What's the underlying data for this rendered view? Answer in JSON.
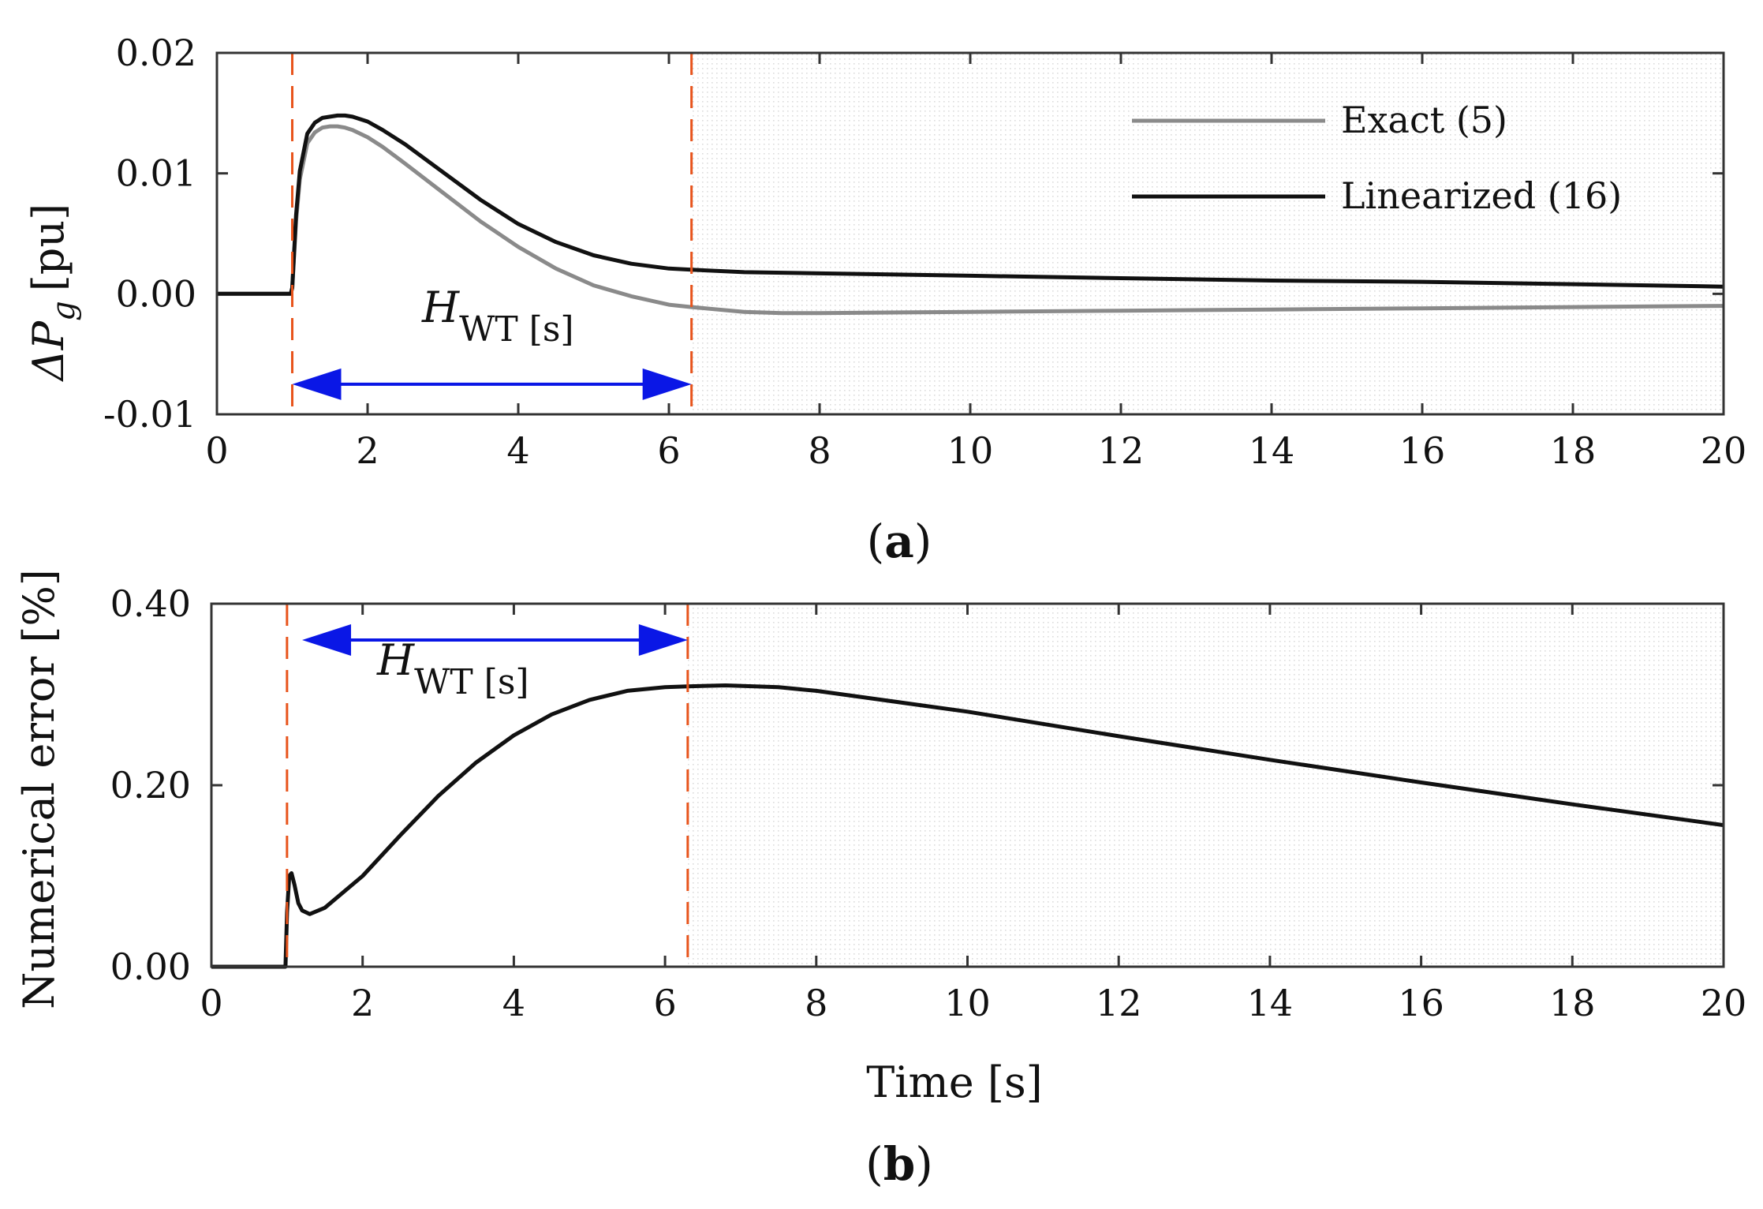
{
  "chart_data": [
    {
      "type": "line",
      "panel": "a",
      "caption_open": "(",
      "caption_letter": "a",
      "caption_close": ")",
      "ylabel_symbol": "ΔP",
      "ylabel_subscript": "g",
      "ylabel_unit": "[pu]",
      "xlabel": "",
      "xlim": [
        0,
        20
      ],
      "ylim": [
        -0.01,
        0.02
      ],
      "x_ticks": [
        "0",
        "2",
        "4",
        "6",
        "8",
        "10",
        "12",
        "14",
        "16",
        "18",
        "20"
      ],
      "y_ticks": [
        "-0.01",
        "0.00",
        "0.01",
        "0.02"
      ],
      "legend_position": "top-right",
      "vlines": [
        1.0,
        6.3
      ],
      "shaded_from": 6.3,
      "annotation": {
        "symbol": "H",
        "subscript": "WT [s]",
        "arrow_from": 1.0,
        "arrow_to": 6.3,
        "arrow_y": -0.0075
      },
      "series": [
        {
          "name": "Exact (5)",
          "color": "#8a8a8a",
          "x": [
            0,
            0.98,
            1.0,
            1.05,
            1.1,
            1.2,
            1.3,
            1.4,
            1.5,
            1.6,
            1.7,
            1.8,
            2.0,
            2.2,
            2.5,
            3.0,
            3.5,
            4.0,
            4.5,
            5.0,
            5.5,
            6.0,
            6.3,
            7.0,
            7.5,
            8,
            10,
            12,
            14,
            16,
            18,
            20
          ],
          "values": [
            0,
            0,
            0.0005,
            0.006,
            0.0095,
            0.0125,
            0.0134,
            0.0138,
            0.0139,
            0.0139,
            0.0138,
            0.0136,
            0.013,
            0.0122,
            0.0108,
            0.0084,
            0.006,
            0.0039,
            0.0021,
            0.0007,
            -0.0002,
            -0.0009,
            -0.0011,
            -0.0015,
            -0.0016,
            -0.0016,
            -0.0015,
            -0.0014,
            -0.0013,
            -0.0012,
            -0.0011,
            -0.001
          ]
        },
        {
          "name": "Linearized (16)",
          "color": "#111111",
          "x": [
            0,
            0.98,
            1.0,
            1.05,
            1.1,
            1.2,
            1.3,
            1.4,
            1.5,
            1.6,
            1.7,
            1.8,
            2.0,
            2.2,
            2.5,
            3.0,
            3.5,
            4.0,
            4.5,
            5.0,
            5.5,
            6.0,
            6.3,
            7,
            8,
            10,
            12,
            14,
            16,
            18,
            20
          ],
          "values": [
            0,
            0,
            0.0005,
            0.0065,
            0.0102,
            0.0133,
            0.0142,
            0.0146,
            0.0147,
            0.0148,
            0.0148,
            0.0147,
            0.0143,
            0.0136,
            0.0124,
            0.0101,
            0.0078,
            0.0058,
            0.0043,
            0.0032,
            0.0025,
            0.0021,
            0.002,
            0.0018,
            0.0017,
            0.0015,
            0.0013,
            0.0011,
            0.001,
            0.0008,
            0.0006
          ]
        }
      ]
    },
    {
      "type": "line",
      "panel": "b",
      "caption_open": "(",
      "caption_letter": "b",
      "caption_close": ")",
      "ylabel": "Numerical error [%]",
      "xlabel": "Time [s]",
      "xlim": [
        0,
        20
      ],
      "ylim": [
        0,
        0.4
      ],
      "x_ticks": [
        "0",
        "2",
        "4",
        "6",
        "8",
        "10",
        "12",
        "14",
        "16",
        "18",
        "20"
      ],
      "y_ticks": [
        "0.00",
        "0.20",
        "0.40"
      ],
      "vlines": [
        1.0,
        6.3
      ],
      "shaded_from": 6.3,
      "annotation": {
        "symbol": "H",
        "subscript": "WT [s]",
        "arrow_from": 1.2,
        "arrow_to": 6.3,
        "arrow_y": 0.36
      },
      "series": [
        {
          "name": "Numerical error",
          "color": "#111111",
          "x": [
            0,
            0.98,
            1.0,
            1.03,
            1.06,
            1.1,
            1.15,
            1.2,
            1.3,
            1.5,
            2.0,
            2.5,
            3.0,
            3.5,
            4.0,
            4.5,
            5.0,
            5.5,
            6.0,
            6.3,
            6.8,
            7.5,
            8,
            10,
            12,
            14,
            16,
            18,
            20
          ],
          "values": [
            0,
            0,
            0.06,
            0.1,
            0.103,
            0.09,
            0.07,
            0.062,
            0.058,
            0.065,
            0.1,
            0.145,
            0.188,
            0.225,
            0.255,
            0.278,
            0.294,
            0.304,
            0.308,
            0.309,
            0.31,
            0.308,
            0.304,
            0.281,
            0.254,
            0.228,
            0.203,
            0.179,
            0.156
          ]
        }
      ]
    }
  ]
}
